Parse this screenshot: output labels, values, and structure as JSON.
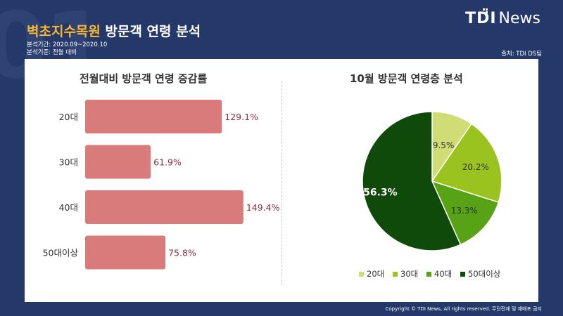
{
  "header": {
    "title_highlight": "벽초지수목원",
    "title_rest": " 방문객 연령 분석",
    "period": "분석기간: 2020.09~2020.10",
    "basis": "분석기준: 전월 대비",
    "source": "출처: TDI DS팀",
    "logo_tdi": "TDI",
    "logo_news": "News",
    "bg_number": "01"
  },
  "footer": {
    "copyright": "Copyright © TDI News, All rights reserved. 무단전재 및 재배포 금지"
  },
  "colors": {
    "background": "#25386a",
    "title_highlight": "#f7b731",
    "bar": "#d97b7b",
    "bar_label": "#8c2f3f",
    "pie": [
      "#cfdd74",
      "#9bc31f",
      "#57a315",
      "#0f4a0a"
    ]
  },
  "chart_data": [
    {
      "type": "bar",
      "orientation": "horizontal",
      "title": "전월대비 방문객 연령 증감률",
      "categories": [
        "20대",
        "30대",
        "40대",
        "50대이상"
      ],
      "values": [
        129.1,
        61.9,
        149.4,
        75.8
      ],
      "labels": [
        "129.1%",
        "61.9%",
        "149.4%",
        "75.8%"
      ],
      "unit": "%"
    },
    {
      "type": "pie",
      "title": "10월 방문객 연령층 분석",
      "categories": [
        "20대",
        "30대",
        "40대",
        "50대이상"
      ],
      "values": [
        9.5,
        20.2,
        13.3,
        56.3
      ],
      "labels": [
        "9.5%",
        "20.2%",
        "13.3%",
        "56.3%"
      ],
      "legend_position": "bottom"
    }
  ]
}
